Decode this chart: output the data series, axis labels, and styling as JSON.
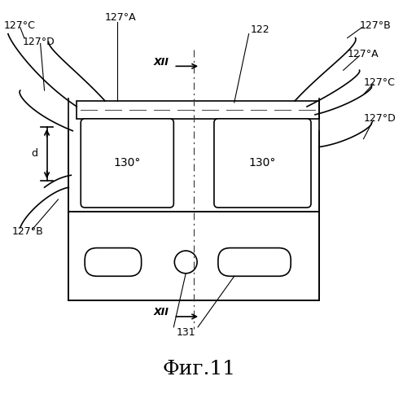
{
  "title": "Фиг.11",
  "title_fontsize": 18,
  "background_color": "#ffffff",
  "line_color": "#000000",
  "fig_width": 4.95,
  "fig_height": 5.0,
  "labels": {
    "127C_left": "127°С",
    "127D_left": "127°D",
    "127A_top": "127°A",
    "122": "122",
    "127B_right": "127°B",
    "127A_right": "127°A",
    "127C_right": "127°C",
    "127D_right": "127°D",
    "130_left": "130°",
    "130_right": "130°",
    "127B_left": "127°B",
    "131": "131",
    "XII_top": "XII",
    "XII_bottom": "XII",
    "d": "d"
  }
}
